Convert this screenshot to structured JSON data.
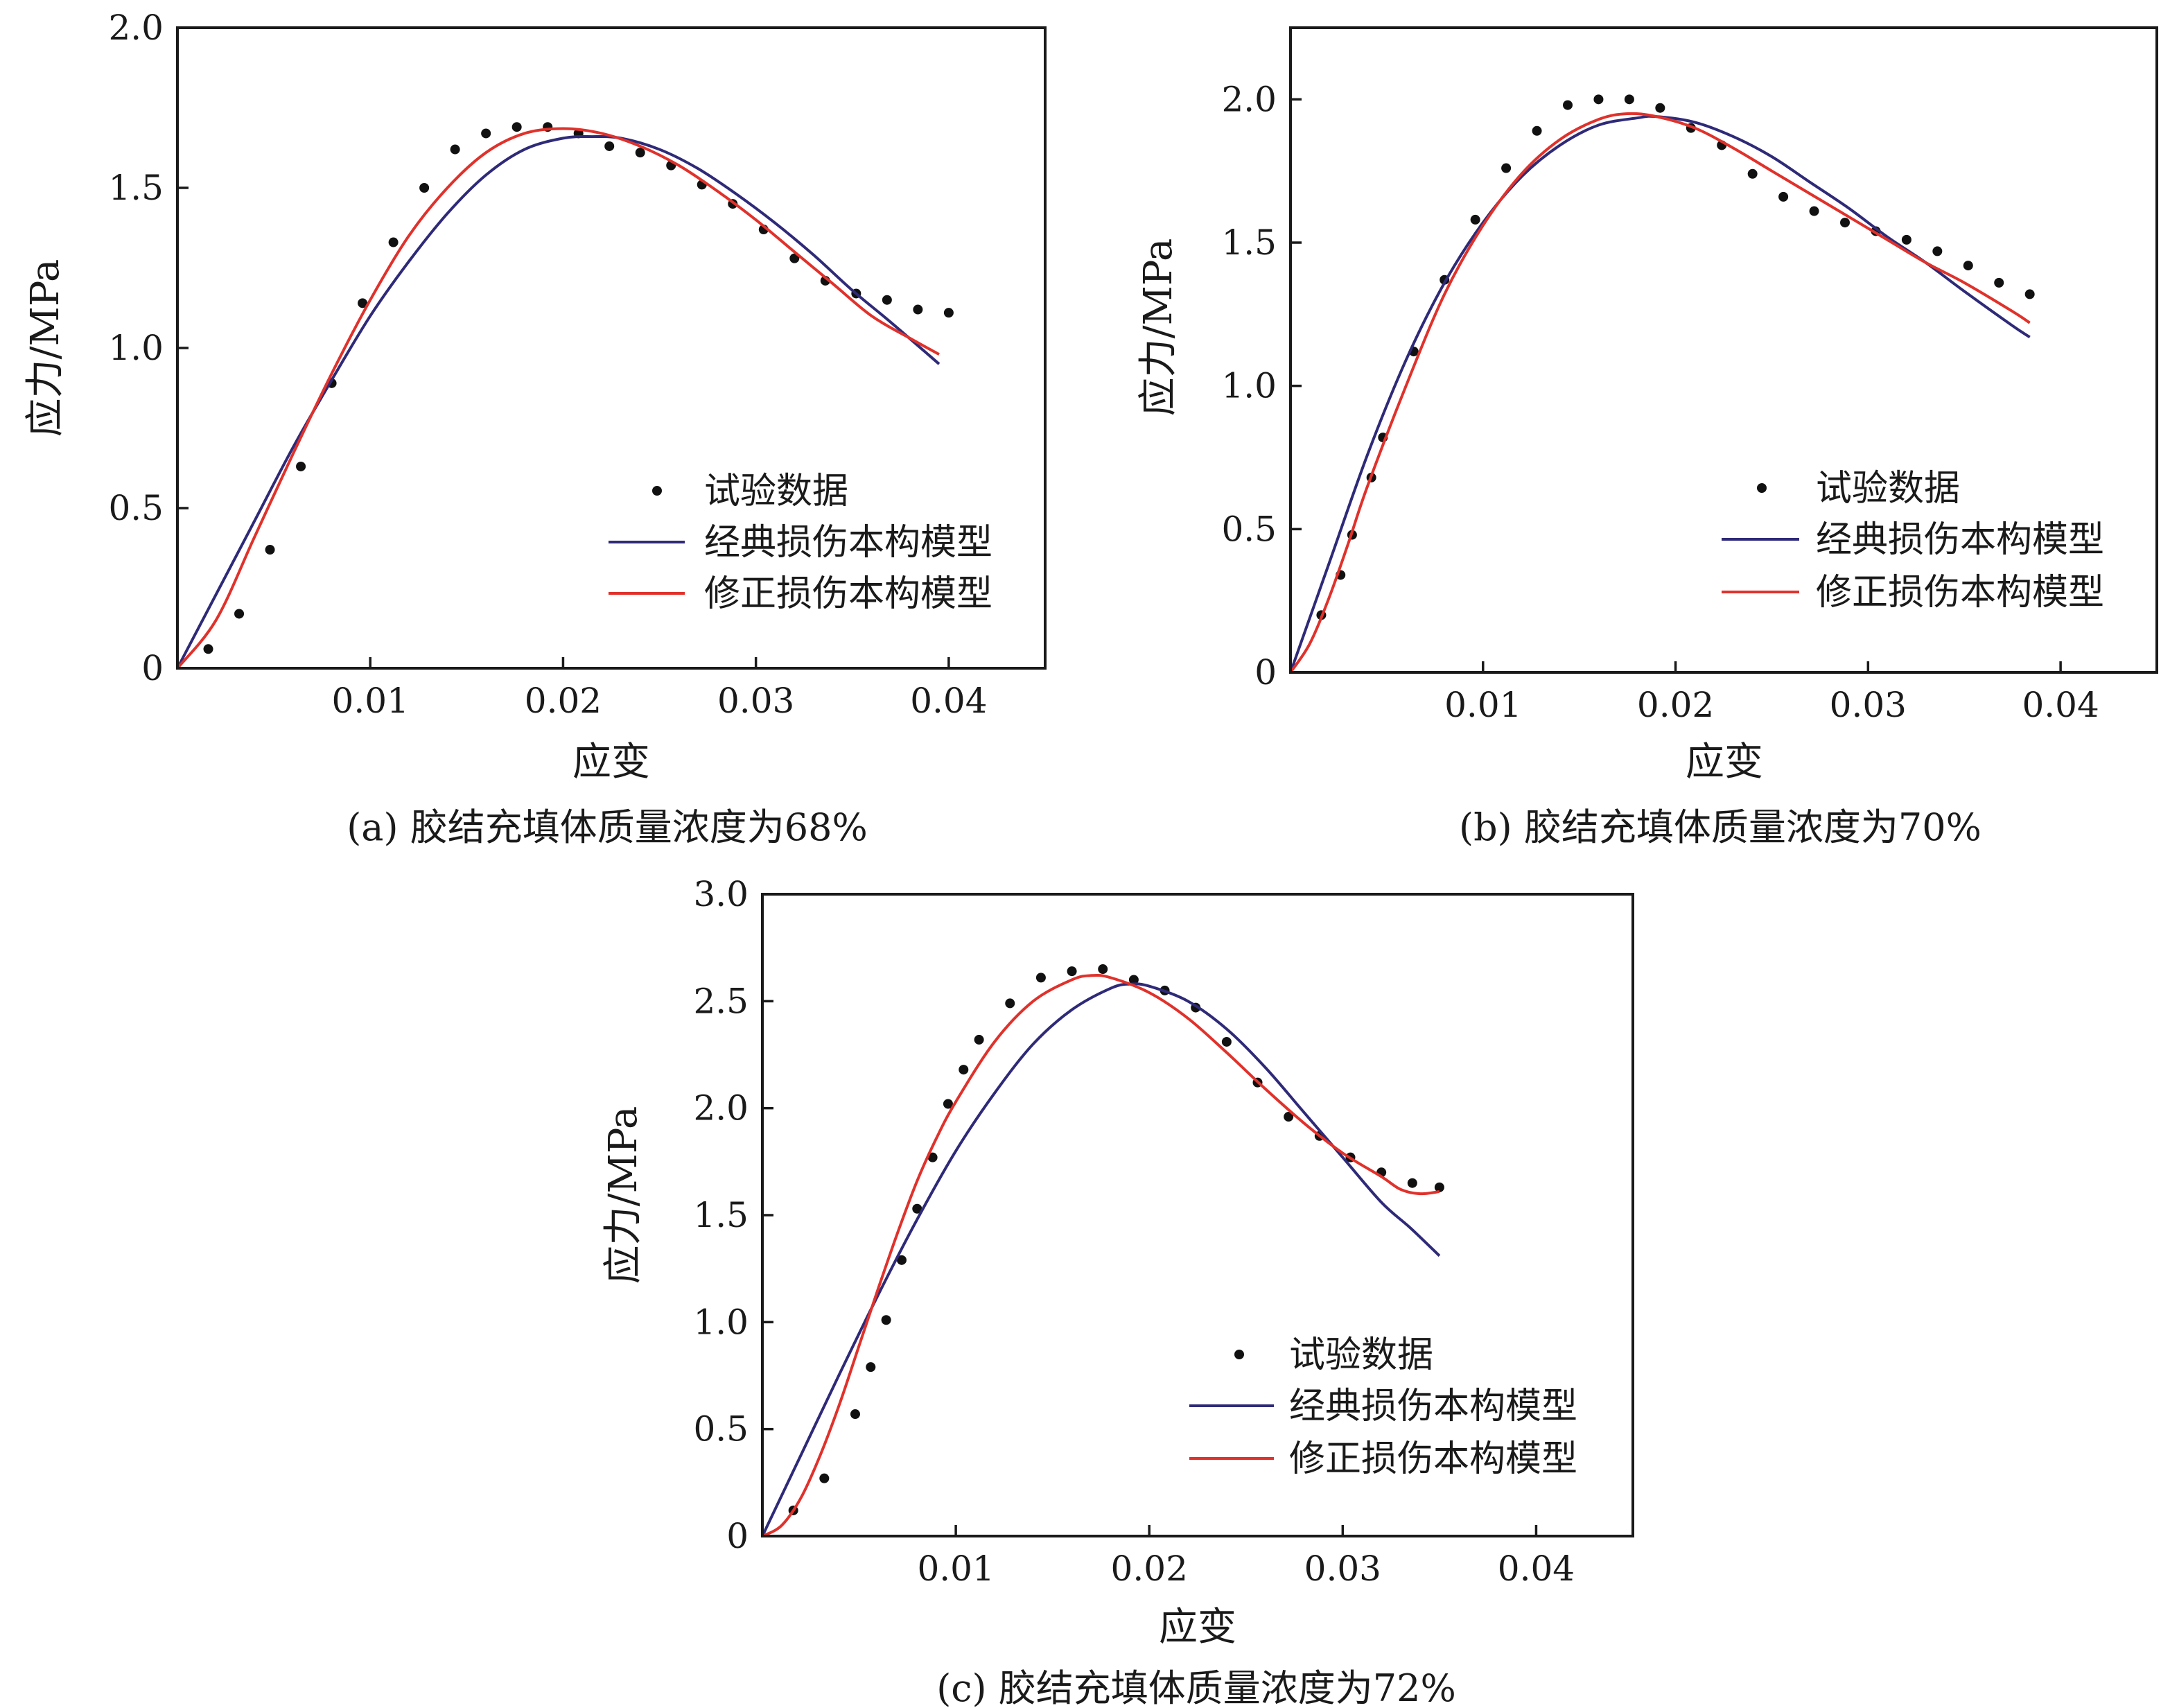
{
  "legend_labels": [
    "试验数据",
    "经典损伤本构模型",
    "修正损伤本构模型"
  ],
  "colors": {
    "data_points": "#111111",
    "classic_model": "#2e2a78",
    "modified_model": "#e0312b",
    "axis": "#1a1a1a"
  },
  "chart_data": [
    {
      "type": "line",
      "panel": "a",
      "caption": "(a) 胶结充填体质量浓度为68%",
      "xlabel": "应变",
      "ylabel": "应力/MPa",
      "xlim": [
        0,
        0.045
      ],
      "ylim": [
        0,
        2.0
      ],
      "x_ticks": [
        0.01,
        0.02,
        0.03,
        0.04
      ],
      "x_tick_labels": [
        "0.01",
        "0.02",
        "0.03",
        "0.04"
      ],
      "y_ticks": [
        0,
        0.5,
        1.0,
        1.5,
        2.0
      ],
      "y_tick_labels": [
        "0",
        "0.5",
        "1.0",
        "1.5",
        "2.0"
      ],
      "legend_position": "lower-right",
      "series": [
        {
          "name": "试验数据",
          "kind": "scatter",
          "x": [
            0.0016,
            0.0032,
            0.0048,
            0.0064,
            0.008,
            0.0096,
            0.0112,
            0.0128,
            0.0144,
            0.016,
            0.0176,
            0.0192,
            0.0208,
            0.0224,
            0.024,
            0.0256,
            0.0272,
            0.0288,
            0.0304,
            0.032,
            0.0336,
            0.0352,
            0.0368,
            0.0384,
            0.04
          ],
          "y": [
            0.06,
            0.17,
            0.37,
            0.63,
            0.89,
            1.14,
            1.33,
            1.5,
            1.62,
            1.67,
            1.69,
            1.69,
            1.67,
            1.63,
            1.61,
            1.57,
            1.51,
            1.45,
            1.37,
            1.28,
            1.21,
            1.17,
            1.15,
            1.12,
            1.11
          ]
        },
        {
          "name": "经典损伤本构模型",
          "kind": "line",
          "x": [
            0,
            0.002,
            0.004,
            0.006,
            0.008,
            0.01,
            0.012,
            0.014,
            0.016,
            0.018,
            0.02,
            0.0215,
            0.023,
            0.025,
            0.027,
            0.029,
            0.031,
            0.033,
            0.035,
            0.037,
            0.0395
          ],
          "y": [
            0,
            0.23,
            0.46,
            0.69,
            0.9,
            1.1,
            1.27,
            1.42,
            1.54,
            1.62,
            1.655,
            1.66,
            1.655,
            1.62,
            1.56,
            1.48,
            1.39,
            1.29,
            1.18,
            1.08,
            0.95
          ]
        },
        {
          "name": "修正损伤本构模型",
          "kind": "line",
          "x": [
            0,
            0.002,
            0.004,
            0.006,
            0.008,
            0.01,
            0.012,
            0.014,
            0.016,
            0.018,
            0.02,
            0.022,
            0.024,
            0.026,
            0.028,
            0.03,
            0.032,
            0.034,
            0.036,
            0.038,
            0.0395
          ],
          "y": [
            0,
            0.15,
            0.41,
            0.67,
            0.92,
            1.15,
            1.35,
            1.5,
            1.61,
            1.67,
            1.685,
            1.67,
            1.63,
            1.57,
            1.49,
            1.4,
            1.3,
            1.2,
            1.1,
            1.03,
            0.98
          ]
        }
      ]
    },
    {
      "type": "line",
      "panel": "b",
      "caption": "(b) 胶结充填体质量浓度为70%",
      "xlabel": "应变",
      "ylabel": "应力/MPa",
      "xlim": [
        0,
        0.045
      ],
      "ylim": [
        0,
        2.25
      ],
      "x_ticks": [
        0.01,
        0.02,
        0.03,
        0.04
      ],
      "x_tick_labels": [
        "0.01",
        "0.02",
        "0.03",
        "0.04"
      ],
      "y_ticks": [
        0,
        0.5,
        1.0,
        1.5,
        2.0
      ],
      "y_tick_labels": [
        "0",
        "0.5",
        "1.0",
        "1.5",
        "2.0"
      ],
      "legend_position": "lower-right",
      "series": [
        {
          "name": "试验数据",
          "kind": "scatter",
          "x": [
            0.0016,
            0.0026,
            0.0032,
            0.0042,
            0.0048,
            0.0064,
            0.008,
            0.0096,
            0.0112,
            0.0128,
            0.0144,
            0.016,
            0.0176,
            0.0192,
            0.0208,
            0.0224,
            0.024,
            0.0256,
            0.0272,
            0.0288,
            0.0304,
            0.032,
            0.0336,
            0.0352,
            0.0368,
            0.0384
          ],
          "y": [
            0.2,
            0.34,
            0.48,
            0.68,
            0.82,
            1.12,
            1.37,
            1.58,
            1.76,
            1.89,
            1.98,
            2.0,
            2.0,
            1.97,
            1.9,
            1.84,
            1.74,
            1.66,
            1.61,
            1.57,
            1.54,
            1.51,
            1.47,
            1.42,
            1.36,
            1.32
          ]
        },
        {
          "name": "经典损伤本构模型",
          "kind": "line",
          "x": [
            0,
            0.002,
            0.004,
            0.006,
            0.008,
            0.01,
            0.012,
            0.014,
            0.016,
            0.018,
            0.019,
            0.021,
            0.023,
            0.025,
            0.027,
            0.029,
            0.031,
            0.033,
            0.035,
            0.0375,
            0.0384
          ],
          "y": [
            0,
            0.38,
            0.76,
            1.09,
            1.36,
            1.57,
            1.73,
            1.84,
            1.91,
            1.935,
            1.94,
            1.92,
            1.87,
            1.8,
            1.71,
            1.62,
            1.52,
            1.43,
            1.33,
            1.21,
            1.17
          ]
        },
        {
          "name": "修正损伤本构模型",
          "kind": "line",
          "x": [
            0,
            0.001,
            0.002,
            0.003,
            0.004,
            0.006,
            0.008,
            0.01,
            0.012,
            0.014,
            0.016,
            0.0175,
            0.019,
            0.021,
            0.023,
            0.025,
            0.027,
            0.029,
            0.031,
            0.033,
            0.035,
            0.0375,
            0.0384
          ],
          "y": [
            0,
            0.1,
            0.26,
            0.45,
            0.65,
            1.0,
            1.32,
            1.56,
            1.74,
            1.86,
            1.93,
            1.95,
            1.94,
            1.9,
            1.83,
            1.75,
            1.67,
            1.59,
            1.51,
            1.43,
            1.36,
            1.26,
            1.22
          ]
        }
      ]
    },
    {
      "type": "line",
      "panel": "c",
      "caption": "(c) 胶结充填体质量浓度为72%",
      "xlabel": "应变",
      "ylabel": "应力/MPa",
      "xlim": [
        0,
        0.045
      ],
      "ylim": [
        0,
        3.0
      ],
      "x_ticks": [
        0.01,
        0.02,
        0.03,
        0.04
      ],
      "x_tick_labels": [
        "0.01",
        "0.02",
        "0.03",
        "0.04"
      ],
      "y_ticks": [
        0,
        0.5,
        1.0,
        1.5,
        2.0,
        2.5,
        3.0
      ],
      "y_tick_labels": [
        "0",
        "0.5",
        "1.0",
        "1.5",
        "2.0",
        "2.5",
        "3.0"
      ],
      "legend_position": "lower-right",
      "series": [
        {
          "name": "试验数据",
          "kind": "scatter",
          "x": [
            0.0016,
            0.0032,
            0.0048,
            0.0056,
            0.0064,
            0.0072,
            0.008,
            0.0088,
            0.0096,
            0.0104,
            0.0112,
            0.0128,
            0.0144,
            0.016,
            0.0176,
            0.0192,
            0.0208,
            0.0224,
            0.024,
            0.0256,
            0.0272,
            0.0288,
            0.0304,
            0.032,
            0.0336,
            0.035
          ],
          "y": [
            0.12,
            0.27,
            0.57,
            0.79,
            1.01,
            1.29,
            1.53,
            1.77,
            2.02,
            2.18,
            2.32,
            2.49,
            2.61,
            2.64,
            2.65,
            2.6,
            2.55,
            2.47,
            2.31,
            2.12,
            1.96,
            1.87,
            1.77,
            1.7,
            1.65,
            1.63
          ]
        },
        {
          "name": "经典损伤本构模型",
          "kind": "line",
          "x": [
            0,
            0.002,
            0.004,
            0.006,
            0.008,
            0.01,
            0.012,
            0.014,
            0.016,
            0.018,
            0.019,
            0.02,
            0.022,
            0.024,
            0.026,
            0.028,
            0.03,
            0.032,
            0.0335,
            0.035
          ],
          "y": [
            0,
            0.38,
            0.76,
            1.13,
            1.48,
            1.8,
            2.07,
            2.3,
            2.46,
            2.56,
            2.58,
            2.57,
            2.5,
            2.37,
            2.19,
            1.98,
            1.77,
            1.56,
            1.44,
            1.31
          ]
        },
        {
          "name": "修正损伤本构模型",
          "kind": "line",
          "x": [
            0,
            0.001,
            0.002,
            0.003,
            0.004,
            0.005,
            0.006,
            0.007,
            0.008,
            0.009,
            0.01,
            0.012,
            0.014,
            0.016,
            0.017,
            0.018,
            0.02,
            0.022,
            0.024,
            0.026,
            0.028,
            0.03,
            0.032,
            0.033,
            0.034,
            0.035
          ],
          "y": [
            0,
            0.05,
            0.18,
            0.38,
            0.62,
            0.89,
            1.16,
            1.42,
            1.66,
            1.86,
            2.03,
            2.31,
            2.5,
            2.6,
            2.62,
            2.61,
            2.54,
            2.42,
            2.26,
            2.09,
            1.93,
            1.79,
            1.68,
            1.62,
            1.6,
            1.61
          ]
        }
      ]
    }
  ]
}
